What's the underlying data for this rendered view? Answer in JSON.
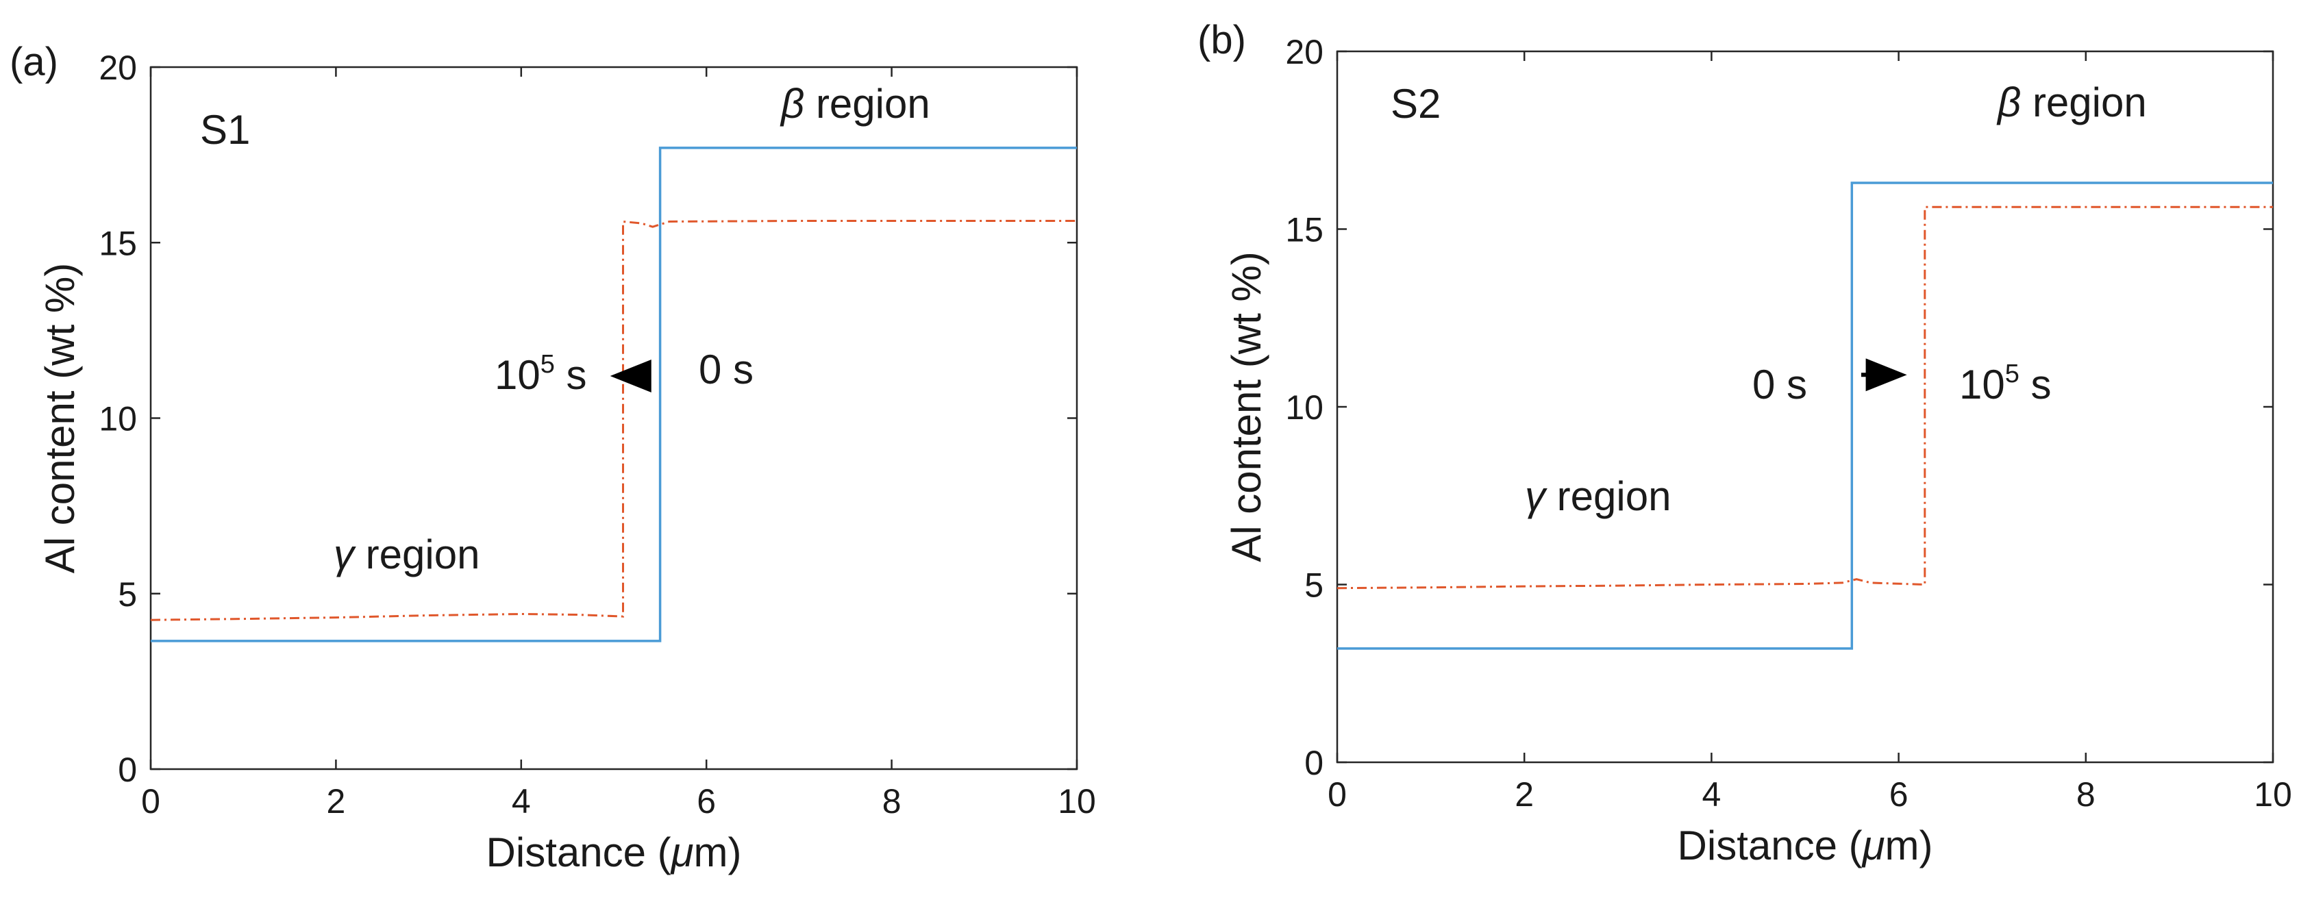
{
  "chart_data": [
    {
      "panel_label": "(a)",
      "sample": "S1",
      "type": "line",
      "xlabel_prefix": "Distance (",
      "xlabel_mu": "μ",
      "xlabel_suffix": "m)",
      "ylabel": "Al content (wt %)",
      "xlim": [
        0,
        10
      ],
      "ylim": [
        0,
        20
      ],
      "xticks": [
        "0",
        "2",
        "4",
        "6",
        "8",
        "10"
      ],
      "yticks": [
        "0",
        "5",
        "10",
        "15",
        "20"
      ],
      "series": [
        {
          "name": "0 s",
          "style": "solid",
          "color": "#4a9bd6",
          "x": [
            0,
            5.5,
            5.5,
            10
          ],
          "y": [
            3.65,
            3.65,
            17.7,
            17.7
          ]
        },
        {
          "name": "10^5 s",
          "style": "dash-dot",
          "color": "#e0572b",
          "x": [
            0,
            1,
            2,
            3,
            4,
            4.6,
            5.1,
            5.1,
            5.3,
            5.42,
            5.6,
            7,
            10
          ],
          "y": [
            4.25,
            4.28,
            4.32,
            4.38,
            4.42,
            4.4,
            4.35,
            15.6,
            15.55,
            15.45,
            15.6,
            15.62,
            15.62
          ]
        }
      ],
      "region_gamma_symbol": "γ",
      "region_gamma_text": " region",
      "region_beta_symbol": "β",
      "region_beta_text": " region",
      "time_start_label": "0 s",
      "time_end_base": "10",
      "time_end_exp": "5",
      "time_end_unit": " s",
      "arrow_direction": "left",
      "arrow_from_x": 5.35,
      "arrow_to_x": 5.05,
      "arrow_y": 11.2
    },
    {
      "panel_label": "(b)",
      "sample": "S2",
      "type": "line",
      "xlabel_prefix": "Distance (",
      "xlabel_mu": "μ",
      "xlabel_suffix": "m)",
      "ylabel": "Al content (wt %)",
      "xlim": [
        0,
        10
      ],
      "ylim": [
        0,
        20
      ],
      "xticks": [
        "0",
        "2",
        "4",
        "6",
        "8",
        "10"
      ],
      "yticks": [
        "0",
        "5",
        "10",
        "15",
        "20"
      ],
      "series": [
        {
          "name": "0 s",
          "style": "solid",
          "color": "#4a9bd6",
          "x": [
            0,
            5.5,
            5.5,
            10
          ],
          "y": [
            3.2,
            3.2,
            16.3,
            16.3
          ]
        },
        {
          "name": "10^5 s",
          "style": "dash-dot",
          "color": "#e0572b",
          "x": [
            0,
            1,
            2,
            3,
            4,
            5,
            5.4,
            5.55,
            5.7,
            6.28,
            6.28,
            7,
            10
          ],
          "y": [
            4.9,
            4.92,
            4.95,
            4.97,
            5.0,
            5.02,
            5.05,
            5.15,
            5.05,
            5.0,
            15.62,
            15.62,
            15.62
          ]
        }
      ],
      "region_gamma_symbol": "γ",
      "region_gamma_text": " region",
      "region_beta_symbol": "β",
      "region_beta_text": " region",
      "time_start_label": "0 s",
      "time_end_base": "10",
      "time_end_exp": "5",
      "time_end_unit": " s",
      "arrow_direction": "right",
      "arrow_from_x": 5.6,
      "arrow_to_x": 6.0,
      "arrow_y": 10.9
    }
  ]
}
